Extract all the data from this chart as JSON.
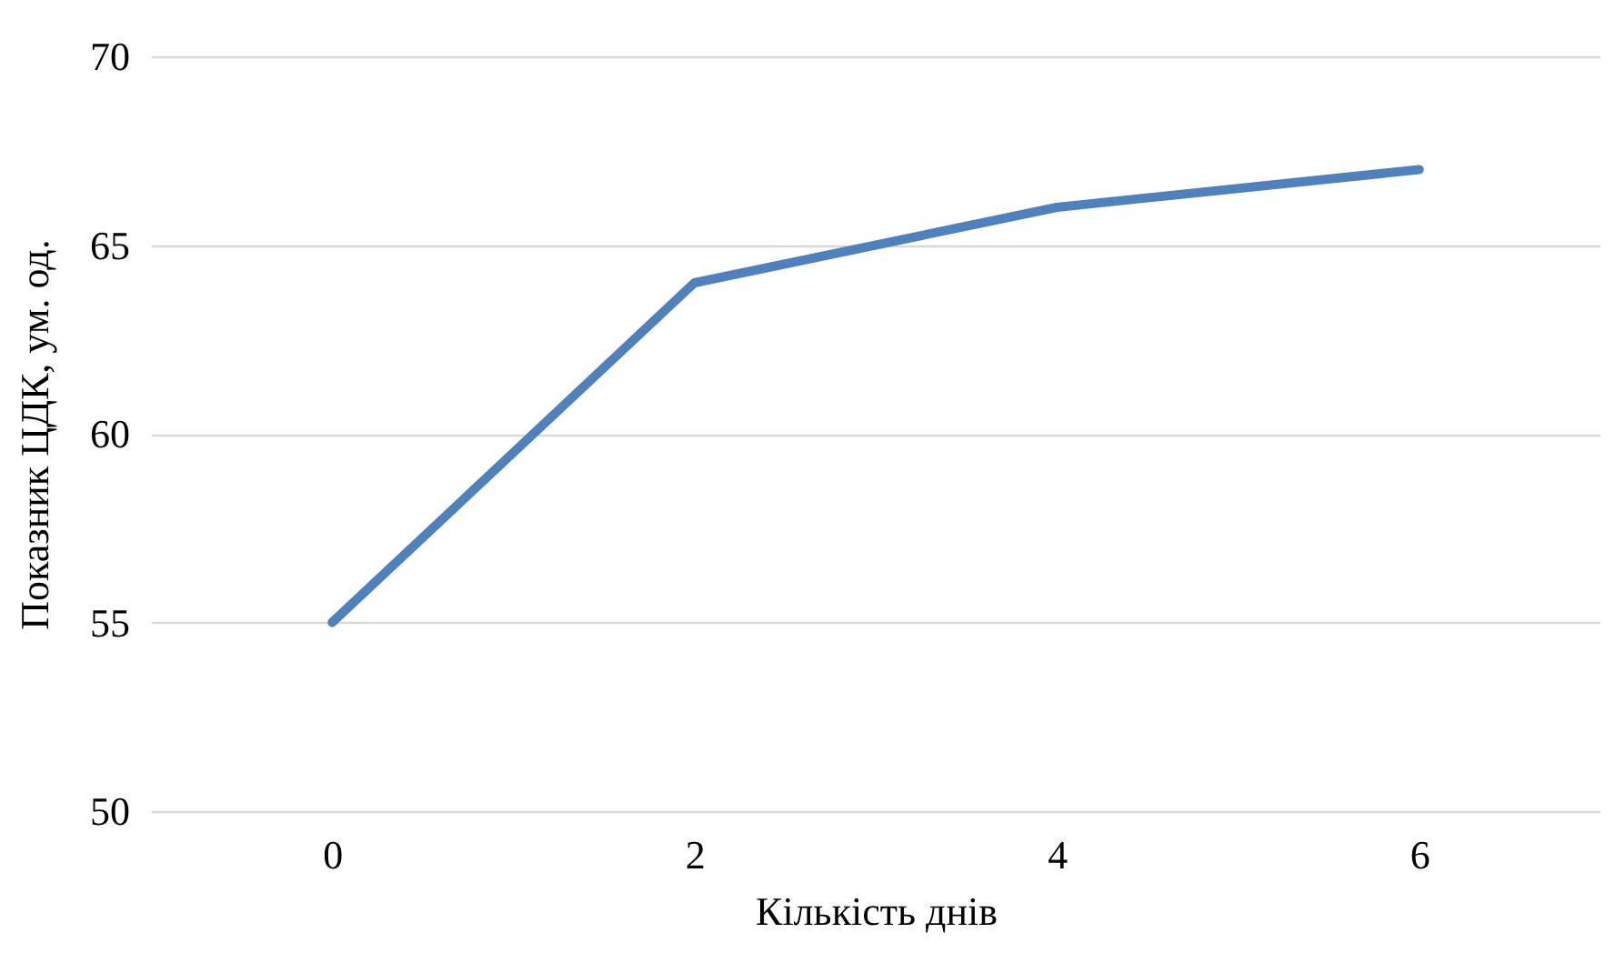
{
  "chart_data": {
    "type": "line",
    "xlabel": "Кількість днів",
    "ylabel": "Показник ЦДК, ум. од.",
    "categories": [
      "0",
      "2",
      "4",
      "6"
    ],
    "series": [
      {
        "color": "#4f81bd",
        "values": [
          55,
          64,
          66,
          67
        ]
      }
    ],
    "ylim": [
      50,
      70
    ],
    "yticks": [
      50,
      55,
      60,
      65,
      70
    ],
    "grid": "y",
    "marker": "none",
    "line_style": "solid"
  }
}
